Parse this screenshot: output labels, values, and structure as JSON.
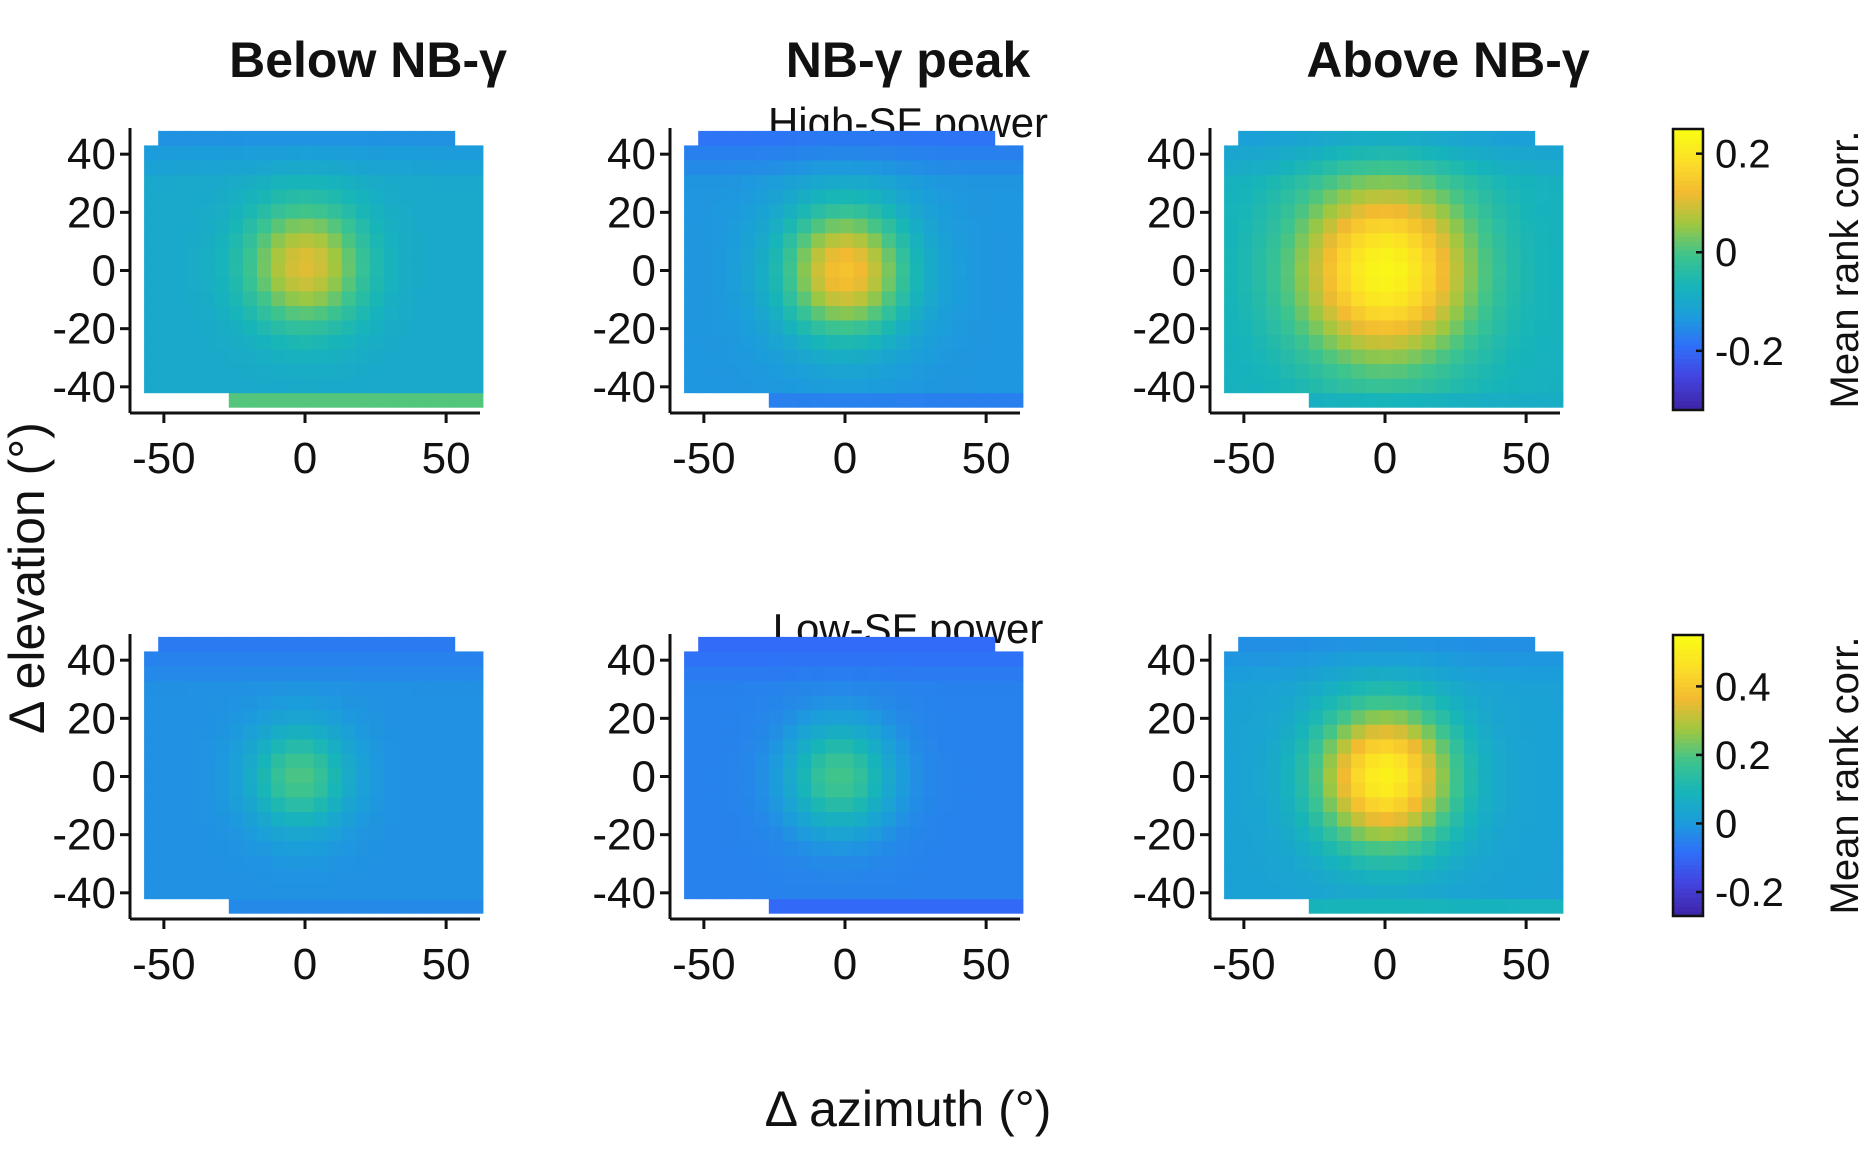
{
  "figure": {
    "column_titles": [
      "Below NB-γ",
      "NB-γ peak",
      "Above NB-γ"
    ],
    "row_titles": [
      "High-SF power",
      "Low-SF power"
    ],
    "xlabel": "Δ azimuth (°)",
    "ylabel": "Δ elevation (°)",
    "colorbar_label": "Mean rank corr.",
    "colormap": "parula",
    "colormap_stops": [
      "#3e26a8",
      "#4443e0",
      "#2f6ff9",
      "#1c9ddb",
      "#17b5b9",
      "#3fc48c",
      "#9fc740",
      "#f2ba31",
      "#fcdd28",
      "#f9fb15"
    ]
  },
  "chart_data": [
    {
      "type": "heatmap",
      "row": "High-SF power",
      "column": "Below NB-γ",
      "xlim": [
        -62,
        62
      ],
      "ylim": [
        -49,
        49
      ],
      "xticks": [
        -50,
        0,
        50
      ],
      "yticks": [
        40,
        20,
        0,
        -20,
        -40
      ],
      "peak": {
        "x": 0,
        "y": 2
      },
      "peak_value": 0.11,
      "background_value": -0.1,
      "peak_sigma_deg": 15,
      "bottom_strip_value": 0.12,
      "colorbar": null
    },
    {
      "type": "heatmap",
      "row": "High-SF power",
      "column": "NB-γ peak",
      "xlim": [
        -62,
        62
      ],
      "ylim": [
        -49,
        49
      ],
      "xticks": [
        -50,
        0,
        50
      ],
      "yticks": [
        40,
        20,
        0,
        -20,
        -40
      ],
      "peak": {
        "x": 0,
        "y": 0
      },
      "peak_value": 0.14,
      "background_value": -0.14,
      "peak_sigma_deg": 16,
      "bottom_strip_value": -0.2,
      "colorbar": null
    },
    {
      "type": "heatmap",
      "row": "High-SF power",
      "column": "Above NB-γ",
      "xlim": [
        -62,
        62
      ],
      "ylim": [
        -49,
        49
      ],
      "xticks": [
        -50,
        0,
        50
      ],
      "yticks": [
        40,
        20,
        0,
        -20,
        -40
      ],
      "peak": {
        "x": 0,
        "y": 0
      },
      "peak_value": 0.24,
      "background_value": -0.08,
      "peak_sigma_deg": 22,
      "bottom_strip_value": -0.1,
      "colorbar": {
        "clim": [
          -0.32,
          0.25
        ],
        "ticks": [
          0.2,
          0,
          -0.2
        ],
        "tick_labels": [
          "0.2",
          "0",
          "-0.2"
        ]
      }
    },
    {
      "type": "heatmap",
      "row": "Low-SF power",
      "column": "Below NB-γ",
      "xlim": [
        -62,
        62
      ],
      "ylim": [
        -49,
        49
      ],
      "xticks": [
        -50,
        0,
        50
      ],
      "yticks": [
        40,
        20,
        0,
        -20,
        -40
      ],
      "peak": {
        "x": -2,
        "y": 0
      },
      "peak_value": 0.2,
      "background_value": -0.02,
      "peak_sigma_deg": 12,
      "bottom_strip_value": -0.05,
      "colorbar": null
    },
    {
      "type": "heatmap",
      "row": "Low-SF power",
      "column": "NB-γ peak",
      "xlim": [
        -62,
        62
      ],
      "ylim": [
        -49,
        49
      ],
      "xticks": [
        -50,
        0,
        50
      ],
      "yticks": [
        40,
        20,
        0,
        -20,
        -40
      ],
      "peak": {
        "x": -2,
        "y": 0
      },
      "peak_value": 0.19,
      "background_value": -0.05,
      "peak_sigma_deg": 13,
      "bottom_strip_value": -0.15,
      "colorbar": null
    },
    {
      "type": "heatmap",
      "row": "Low-SF power",
      "column": "Above NB-γ",
      "xlim": [
        -62,
        62
      ],
      "ylim": [
        -49,
        49
      ],
      "xticks": [
        -50,
        0,
        50
      ],
      "yticks": [
        40,
        20,
        0,
        -20,
        -40
      ],
      "peak": {
        "x": 0,
        "y": 0
      },
      "peak_value": 0.52,
      "background_value": 0.02,
      "peak_sigma_deg": 17,
      "bottom_strip_value": 0.15,
      "colorbar": {
        "clim": [
          -0.27,
          0.55
        ],
        "ticks": [
          0.4,
          0.2,
          0,
          -0.2
        ],
        "tick_labels": [
          "0.4",
          "0.2",
          "0",
          "-0.2"
        ]
      }
    }
  ]
}
